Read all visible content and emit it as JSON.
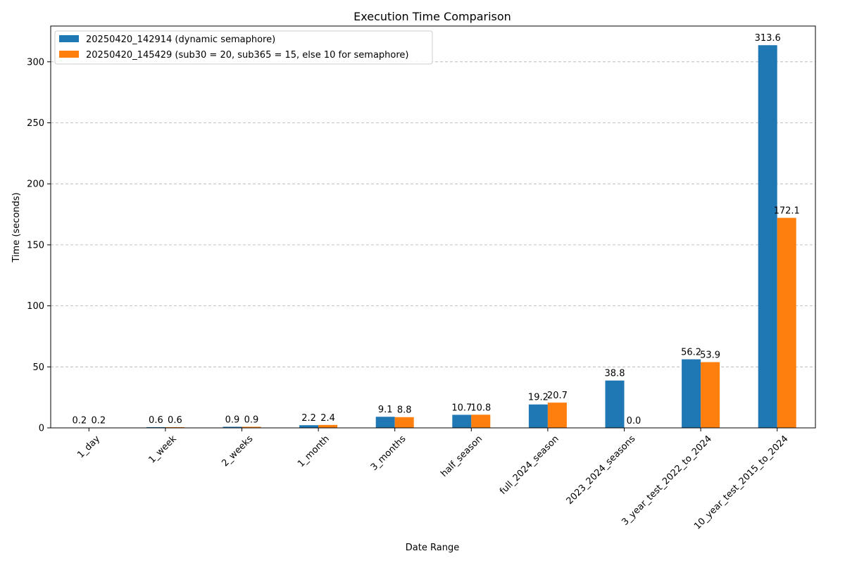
{
  "chart_data": {
    "type": "bar",
    "title": "Execution Time Comparison",
    "xlabel": "Date Range",
    "ylabel": "Time (seconds)",
    "categories": [
      "1_day",
      "1_week",
      "2_weeks",
      "1_month",
      "3_months",
      "half_season",
      "full_2024_season",
      "2023_2024_seasons",
      "3_year_test_2022_to_2024",
      "10_year_test_2015_to_2024"
    ],
    "series": [
      {
        "name": "20250420_142914 (dynamic semaphore)",
        "color": "#1f77b4",
        "values": [
          0.2,
          0.6,
          0.9,
          2.2,
          9.1,
          10.7,
          19.2,
          38.8,
          56.2,
          313.6
        ],
        "labels": [
          "0.2",
          "0.6",
          "0.9",
          "2.2",
          "9.1",
          "10.7",
          "19.2",
          "38.8",
          "56.2",
          "313.6"
        ]
      },
      {
        "name": "20250420_145429 (sub30 = 20, sub365 = 15, else 10 for semaphore)",
        "color": "#ff7f0e",
        "values": [
          0.2,
          0.6,
          0.9,
          2.4,
          8.8,
          10.8,
          20.7,
          0.0,
          53.9,
          172.1
        ],
        "labels": [
          "0.2",
          "0.6",
          "0.9",
          "2.4",
          "8.8",
          "10.8",
          "20.7",
          "0.0",
          "53.9",
          "172.1"
        ]
      }
    ],
    "ylim": [
      0,
      329.3
    ],
    "yticks": [
      0,
      50,
      100,
      150,
      200,
      250,
      300
    ],
    "ytick_labels": [
      "0",
      "50",
      "100",
      "150",
      "200",
      "250",
      "300"
    ],
    "grid": "y-dashed",
    "legend_position": "top-left"
  }
}
